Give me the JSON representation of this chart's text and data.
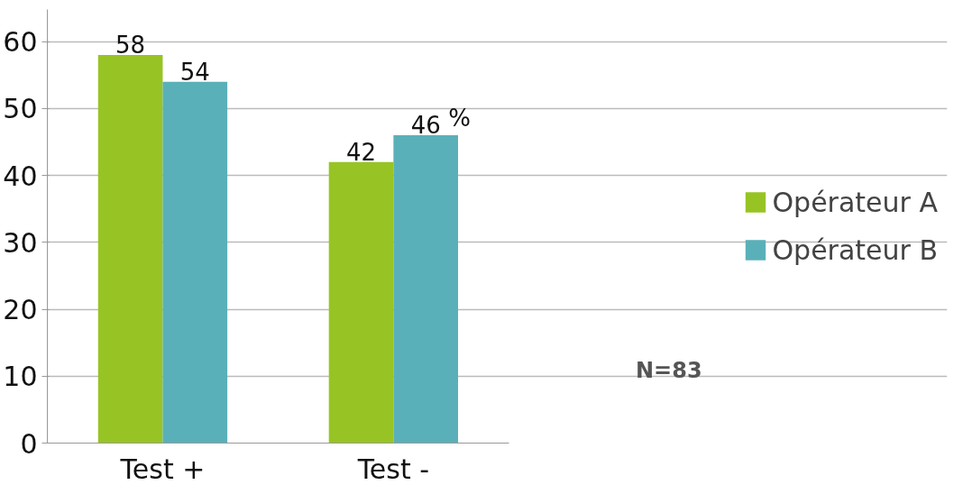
{
  "chart_data": {
    "type": "bar",
    "categories": [
      "Test +",
      "Test -"
    ],
    "series": [
      {
        "name": "Opérateur A",
        "color": "#97c424",
        "values": [
          58,
          42
        ]
      },
      {
        "name": "Opérateur B",
        "color": "#5ab0b8",
        "values": [
          54,
          46
        ]
      }
    ],
    "ylim": [
      0,
      60
    ],
    "yticks": [
      0,
      10,
      20,
      30,
      40,
      50,
      60
    ],
    "grid": "y",
    "legend": "right",
    "data_labels": true,
    "annotations": [
      {
        "text": "%",
        "x": "Test -",
        "y": 46
      },
      "N=83"
    ]
  }
}
